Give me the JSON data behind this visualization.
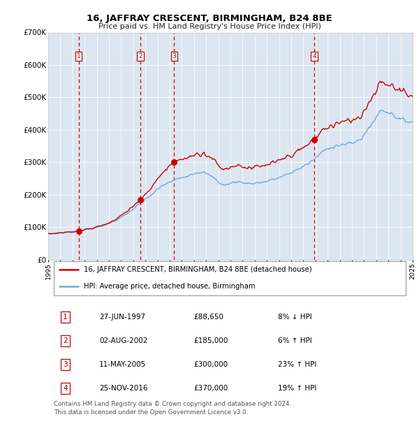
{
  "title": "16, JAFFRAY CRESCENT, BIRMINGHAM, B24 8BE",
  "subtitle": "Price paid vs. HM Land Registry's House Price Index (HPI)",
  "bg_color": "#dce6f1",
  "hpi_line_color": "#6fa8dc",
  "price_line_color": "#cc0000",
  "dashed_line_color": "#cc0000",
  "ylim": [
    0,
    700000
  ],
  "yticks": [
    0,
    100000,
    200000,
    300000,
    400000,
    500000,
    600000,
    700000
  ],
  "ytick_labels": [
    "£0",
    "£100K",
    "£200K",
    "£300K",
    "£400K",
    "£500K",
    "£600K",
    "£700K"
  ],
  "year_start": 1995,
  "year_end": 2025,
  "sales": [
    {
      "num": 1,
      "year": 1997.5,
      "price": 88650
    },
    {
      "num": 2,
      "year": 2002.6,
      "price": 185000
    },
    {
      "num": 3,
      "year": 2005.37,
      "price": 300000
    },
    {
      "num": 4,
      "year": 2016.9,
      "price": 370000
    }
  ],
  "legend_red_label": "16, JAFFRAY CRESCENT, BIRMINGHAM, B24 8BE (detached house)",
  "legend_blue_label": "HPI: Average price, detached house, Birmingham",
  "footer": "Contains HM Land Registry data © Crown copyright and database right 2024.\nThis data is licensed under the Open Government Licence v3.0.",
  "table_rows": [
    [
      "1",
      "27-JUN-1997",
      "£88,650",
      "8% ↓ HPI"
    ],
    [
      "2",
      "02-AUG-2002",
      "£185,000",
      "6% ↑ HPI"
    ],
    [
      "3",
      "11-MAY-2005",
      "£300,000",
      "23% ↑ HPI"
    ],
    [
      "4",
      "25-NOV-2016",
      "£370,000",
      "19% ↑ HPI"
    ]
  ]
}
